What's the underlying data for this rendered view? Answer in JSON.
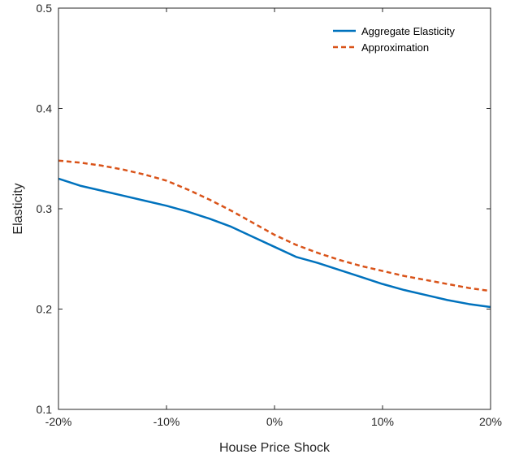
{
  "chart_data": {
    "type": "line",
    "title": "",
    "xlabel": "House Price Shock",
    "ylabel": "Elasticity",
    "xlim": [
      -0.2,
      0.2
    ],
    "ylim": [
      0.1,
      0.5
    ],
    "x_ticks": [
      {
        "value": -0.2,
        "label": "-20%"
      },
      {
        "value": -0.1,
        "label": "-10%"
      },
      {
        "value": 0.0,
        "label": "0%"
      },
      {
        "value": 0.1,
        "label": "10%"
      },
      {
        "value": 0.2,
        "label": "20%"
      }
    ],
    "y_ticks": [
      {
        "value": 0.1,
        "label": "0.1"
      },
      {
        "value": 0.2,
        "label": "0.2"
      },
      {
        "value": 0.3,
        "label": "0.3"
      },
      {
        "value": 0.4,
        "label": "0.4"
      },
      {
        "value": 0.5,
        "label": "0.5"
      }
    ],
    "grid": false,
    "legend_position": "top-right",
    "x": [
      -0.2,
      -0.18,
      -0.16,
      -0.14,
      -0.12,
      -0.1,
      -0.08,
      -0.06,
      -0.04,
      -0.02,
      0.0,
      0.02,
      0.04,
      0.06,
      0.08,
      0.1,
      0.12,
      0.14,
      0.16,
      0.18,
      0.2
    ],
    "series": [
      {
        "name": "Aggregate Elasticity",
        "color": "#0072BD",
        "style": "solid",
        "values": [
          0.33,
          0.323,
          0.318,
          0.313,
          0.308,
          0.303,
          0.297,
          0.29,
          0.282,
          0.272,
          0.262,
          0.252,
          0.246,
          0.239,
          0.232,
          0.225,
          0.219,
          0.214,
          0.209,
          0.205,
          0.202
        ]
      },
      {
        "name": "Approximation",
        "color": "#D95319",
        "style": "dashed",
        "values": [
          0.348,
          0.346,
          0.343,
          0.339,
          0.334,
          0.328,
          0.319,
          0.309,
          0.298,
          0.286,
          0.274,
          0.264,
          0.256,
          0.249,
          0.243,
          0.238,
          0.233,
          0.229,
          0.225,
          0.221,
          0.218
        ]
      }
    ]
  }
}
